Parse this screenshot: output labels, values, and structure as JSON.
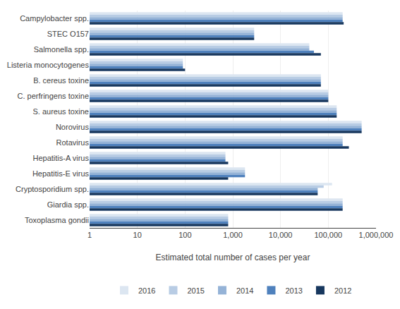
{
  "chart_data": {
    "type": "bar",
    "orientation": "horizontal",
    "log": "x",
    "xlabel": "Estimated total number of cases per year",
    "categories": [
      "Campylobacter spp.",
      "STEC O157",
      "Salmonella spp.",
      "Listeria monocytogenes",
      "B. cereus toxine",
      "C. perfringens toxine",
      "S. aureus toxine",
      "Norovirus",
      "Rotavirus",
      "Hepatitis-A virus",
      "Hepatitis-E virus",
      "Cryptosporidium spp.",
      "Giardia spp.",
      "Toxoplasma gondii"
    ],
    "series": [
      {
        "name": "2016",
        "color": "#dce6f1",
        "values": [
          200000,
          2800,
          40000,
          90,
          70000,
          100000,
          150000,
          500000,
          200000,
          700,
          1800,
          120000,
          200000,
          800
        ]
      },
      {
        "name": "2015",
        "color": "#b8cce4",
        "values": [
          200000,
          2800,
          40000,
          90,
          70000,
          100000,
          150000,
          500000,
          200000,
          700,
          1800,
          80000,
          200000,
          800
        ]
      },
      {
        "name": "2014",
        "color": "#95b3d7",
        "values": [
          200000,
          2800,
          40000,
          90,
          70000,
          100000,
          150000,
          500000,
          200000,
          700,
          1800,
          60000,
          200000,
          800
        ]
      },
      {
        "name": "2013",
        "color": "#4f81bd",
        "values": [
          200000,
          2800,
          50000,
          90,
          70000,
          100000,
          150000,
          500000,
          200000,
          700,
          1800,
          60000,
          200000,
          800
        ]
      },
      {
        "name": "2012",
        "color": "#17375e",
        "values": [
          210000,
          2800,
          70000,
          100,
          70000,
          100000,
          150000,
          500000,
          270000,
          800,
          800,
          60000,
          200000,
          800
        ]
      }
    ],
    "xlim": [
      1,
      1000000
    ],
    "xticks": [
      1,
      10,
      100,
      {
        "value": 1000,
        "label": "1,000"
      },
      {
        "value": 10000,
        "label": "10,000"
      },
      {
        "value": 100000,
        "label": "100,000"
      },
      {
        "value": 1000000,
        "label": "1,000,000"
      }
    ],
    "grid": true,
    "legend": "bottom"
  }
}
